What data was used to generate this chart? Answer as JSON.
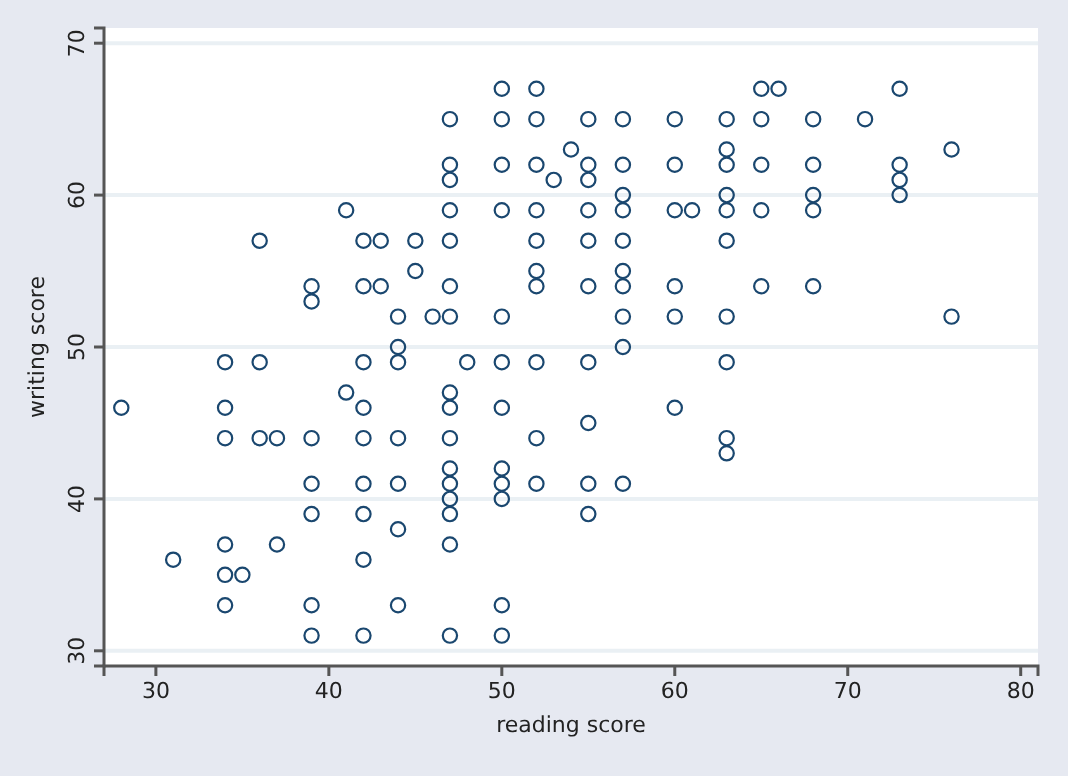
{
  "chart_data": {
    "type": "scatter",
    "xlabel": "reading score",
    "ylabel": "writing score",
    "xlim": [
      27,
      81
    ],
    "ylim": [
      29,
      71
    ],
    "xticks": [
      30,
      40,
      50,
      60,
      70,
      80
    ],
    "yticks": [
      30,
      40,
      50,
      60,
      70
    ],
    "grid": "y",
    "marker": "circle",
    "series": [
      {
        "color": "#1a476f",
        "x": [
          28,
          31,
          34,
          34,
          34,
          34,
          34,
          34,
          35,
          36,
          36,
          36,
          37,
          37,
          39,
          39,
          39,
          39,
          39,
          39,
          39,
          41,
          41,
          42,
          42,
          42,
          42,
          42,
          42,
          42,
          42,
          42,
          43,
          43,
          44,
          44,
          44,
          44,
          44,
          44,
          44,
          45,
          45,
          46,
          47,
          47,
          47,
          47,
          47,
          47,
          47,
          47,
          47,
          47,
          47,
          47,
          47,
          47,
          47,
          47,
          48,
          50,
          50,
          50,
          50,
          50,
          50,
          50,
          50,
          50,
          50,
          50,
          50,
          52,
          52,
          52,
          52,
          52,
          52,
          52,
          52,
          52,
          52,
          53,
          54,
          55,
          55,
          55,
          55,
          55,
          55,
          55,
          55,
          55,
          55,
          57,
          57,
          57,
          57,
          57,
          57,
          57,
          57,
          57,
          57,
          60,
          60,
          60,
          60,
          60,
          60,
          61,
          63,
          63,
          63,
          63,
          63,
          63,
          63,
          63,
          63,
          63,
          65,
          65,
          65,
          65,
          65,
          66,
          68,
          68,
          68,
          68,
          68,
          71,
          73,
          73,
          73,
          73,
          76,
          76
        ],
        "values": [
          46,
          36,
          49,
          46,
          44,
          37,
          35,
          33,
          35,
          57,
          49,
          44,
          44,
          37,
          54,
          53,
          44,
          41,
          39,
          33,
          31,
          59,
          47,
          57,
          54,
          49,
          46,
          44,
          41,
          39,
          36,
          31,
          57,
          54,
          52,
          50,
          49,
          44,
          41,
          38,
          33,
          57,
          55,
          52,
          65,
          62,
          61,
          59,
          57,
          54,
          52,
          47,
          46,
          44,
          42,
          41,
          40,
          39,
          37,
          31,
          49,
          67,
          62,
          59,
          52,
          49,
          46,
          42,
          41,
          40,
          33,
          31,
          65,
          67,
          65,
          62,
          59,
          57,
          55,
          54,
          49,
          44,
          41,
          61,
          63,
          65,
          62,
          61,
          59,
          57,
          54,
          49,
          45,
          41,
          39,
          65,
          62,
          60,
          59,
          57,
          55,
          54,
          52,
          50,
          41,
          65,
          62,
          59,
          54,
          52,
          46,
          59,
          65,
          63,
          62,
          60,
          59,
          57,
          52,
          49,
          44,
          43,
          67,
          65,
          62,
          59,
          54,
          67,
          65,
          62,
          60,
          59,
          54,
          65,
          67,
          62,
          61,
          60,
          63,
          52
        ]
      }
    ]
  }
}
